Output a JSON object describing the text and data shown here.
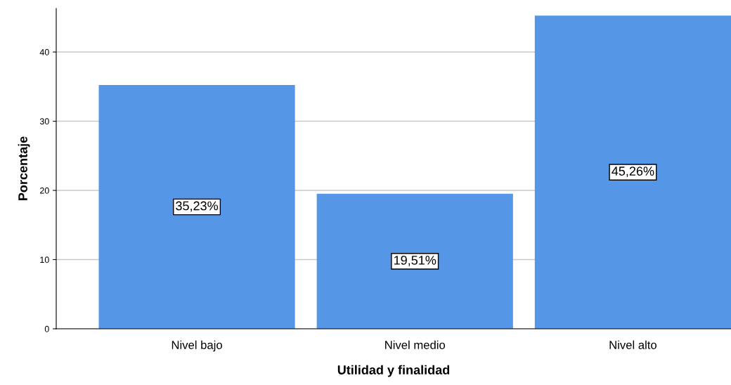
{
  "chart_data": {
    "type": "bar",
    "xlabel": "Utilidad y finalidad",
    "ylabel": "Porcentaje",
    "categories": [
      "Nivel bajo",
      "Nivel medio",
      "Nivel alto"
    ],
    "values": [
      35.23,
      19.51,
      45.26
    ],
    "value_labels": [
      "35,23%",
      "19,51%",
      "45,26%"
    ],
    "color": "#5596e6",
    "ylim": [
      0,
      46.3
    ],
    "yticks": [
      0,
      10,
      20,
      30,
      40
    ],
    "grid": "y",
    "legend": false
  }
}
